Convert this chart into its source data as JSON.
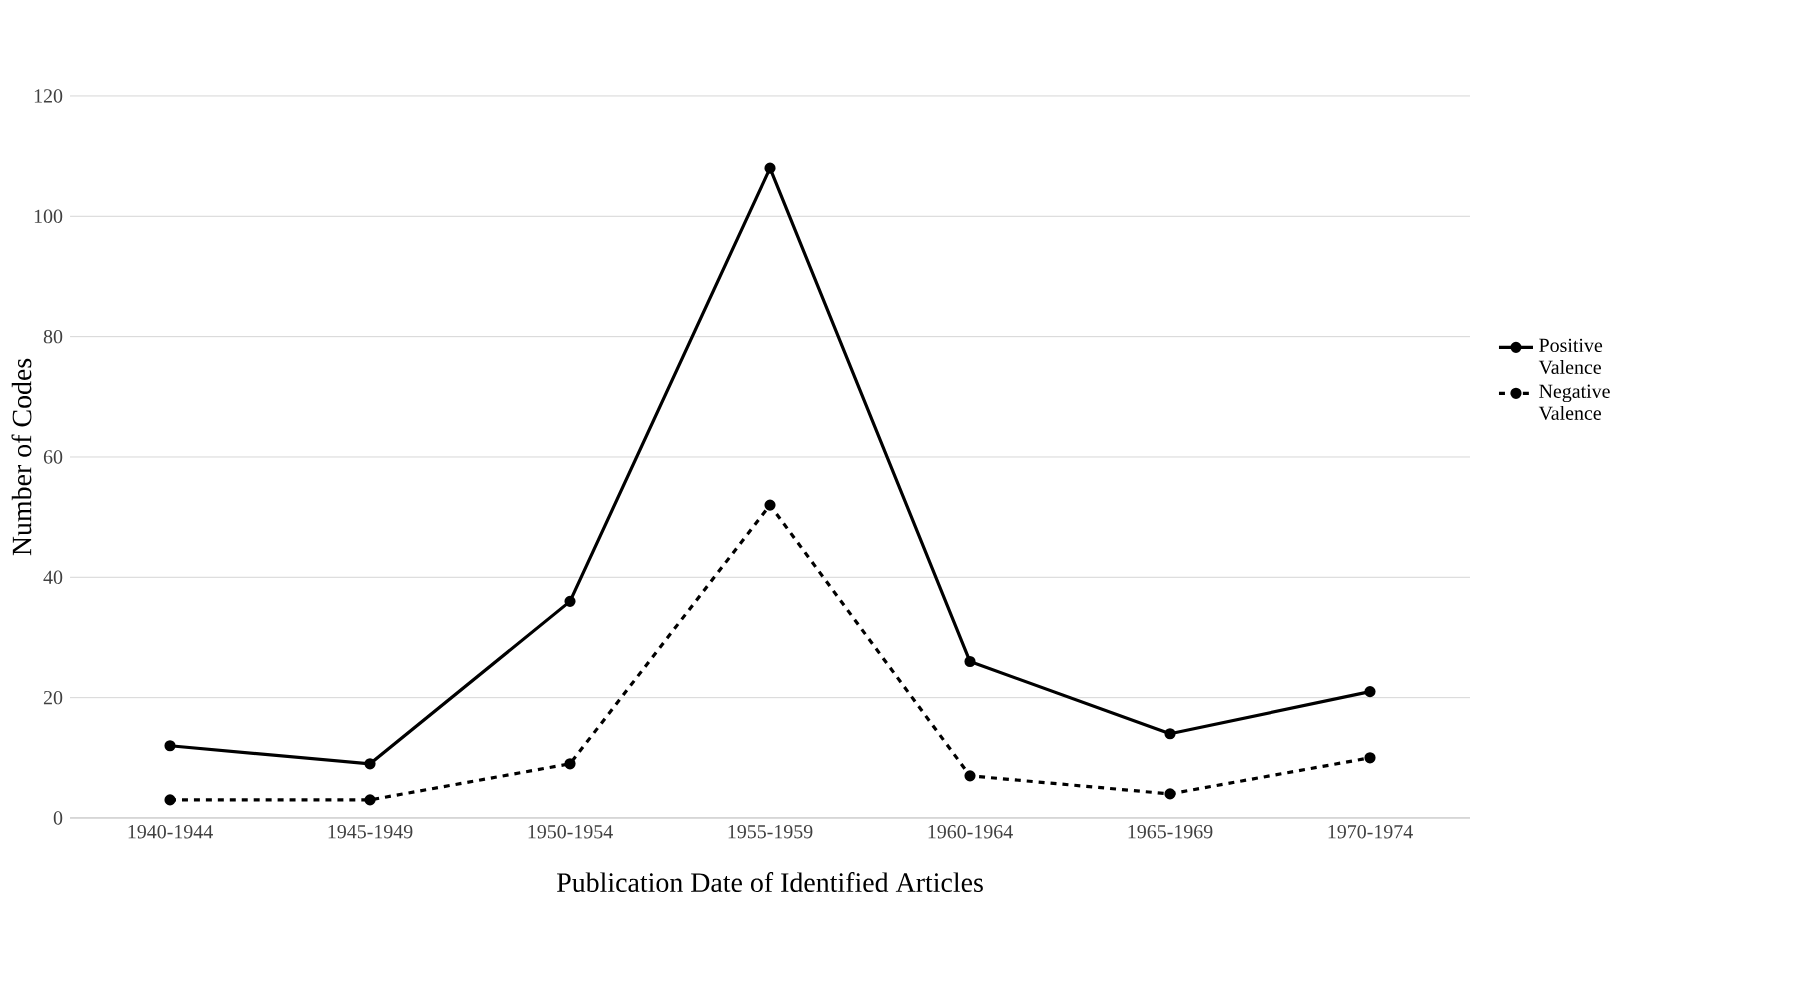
{
  "chart_data": {
    "type": "line",
    "xlabel": "Publication Date of Identified Articles",
    "ylabel": "Number of Codes",
    "categories": [
      "1940-1944",
      "1945-1949",
      "1950-1954",
      "1955-1959",
      "1960-1964",
      "1965-1969",
      "1970-1974"
    ],
    "series": [
      {
        "name": "Positive Valence",
        "color": "#000000",
        "line_style": "solid",
        "values": [
          12,
          9,
          36,
          108,
          26,
          14,
          21
        ]
      },
      {
        "name": "Negative Valence",
        "color": "#000000",
        "line_style": "dashed",
        "values": [
          3,
          3,
          9,
          52,
          7,
          4,
          10
        ]
      }
    ],
    "ylim": [
      0,
      120
    ],
    "yticks": [
      0,
      20,
      40,
      60,
      80,
      100,
      120
    ],
    "grid": "y",
    "legend": "right",
    "marker": "circle"
  }
}
